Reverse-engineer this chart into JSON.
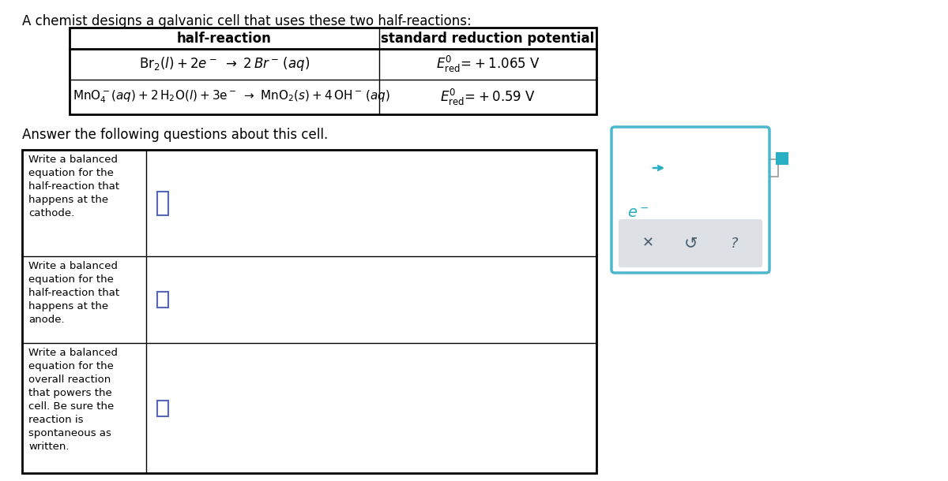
{
  "title": "A chemist designs a galvanic cell that uses these two half-reactions:",
  "table_header_col1": "half-reaction",
  "table_header_col2": "standard reduction potential",
  "answer_label": "Answer the following questions about this cell.",
  "q1": "Write a balanced\nequation for the\nhalf-reaction that\nhappens at the\ncathode.",
  "q2": "Write a balanced\nequation for the\nhalf-reaction that\nhappens at the\nanode.",
  "q3": "Write a balanced\nequation for the\noverall reaction\nthat powers the\ncell. Be sure the\nreaction is\nspontaneous as\nwritten.",
  "bg_color": "#ffffff",
  "border_color": "#000000",
  "panel_border_color": "#4db8cc",
  "teal_color": "#29aec3",
  "toolbar_bg": "#dde1e5",
  "gray_text": "#4a6070",
  "answer_box_color": "#5555cc",
  "input_box_color": "#5599cc"
}
